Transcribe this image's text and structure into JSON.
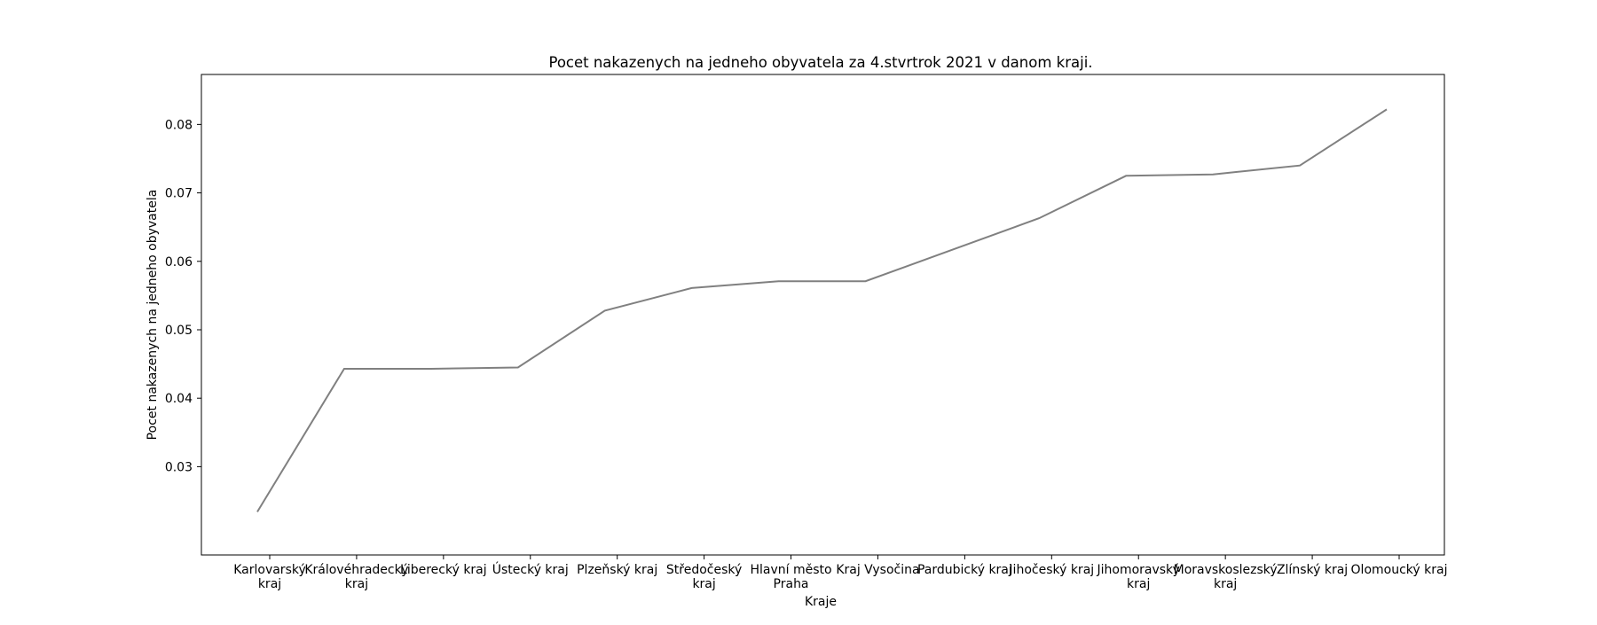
{
  "chart_data": {
    "type": "line",
    "title": "Pocet nakazenych na jedneho obyvatela za 4.stvrtrok 2021 v danom kraji.",
    "xlabel": "Kraje",
    "ylabel": "Pocet nakazenych na jedneho obyvatela",
    "categories": [
      "Karlovarský kraj",
      "Královéhradecký kraj",
      "Liberecký kraj",
      "Ústecký kraj",
      "Plzeňský kraj",
      "Středočeský kraj",
      "Hlavní město Praha",
      "Kraj Vysočina",
      "Pardubický kraj",
      "Jihočeský kraj",
      "Jihomoravský kraj",
      "Moravskoslezský kraj",
      "Zlínský kraj",
      "Olomoucký kraj"
    ],
    "category_lines": [
      [
        "Karlovarský",
        "kraj"
      ],
      [
        "Královéhradecký",
        "kraj"
      ],
      [
        "Liberecký kraj"
      ],
      [
        "Ústecký kraj"
      ],
      [
        "Plzeňský kraj"
      ],
      [
        "Středočeský",
        "kraj"
      ],
      [
        "Hlavní město",
        "Praha"
      ],
      [
        "Kraj Vysočina"
      ],
      [
        "Pardubický kraj"
      ],
      [
        "Jihočeský kraj"
      ],
      [
        "Jihomoravský",
        "kraj"
      ],
      [
        "Moravskoslezský",
        "kraj"
      ],
      [
        "Zlínský kraj"
      ],
      [
        "Olomoucký kraj"
      ]
    ],
    "values": [
      0.0234,
      0.0443,
      0.0443,
      0.0445,
      0.0528,
      0.0561,
      0.0571,
      0.0571,
      0.0617,
      0.0663,
      0.0725,
      0.0727,
      0.074,
      0.0822
    ],
    "yticks": [
      0.03,
      0.04,
      0.05,
      0.06,
      0.07,
      0.08
    ],
    "ylim": [
      0.0171,
      0.0873
    ],
    "line_color": "#808080",
    "grid": false,
    "legend": false
  }
}
